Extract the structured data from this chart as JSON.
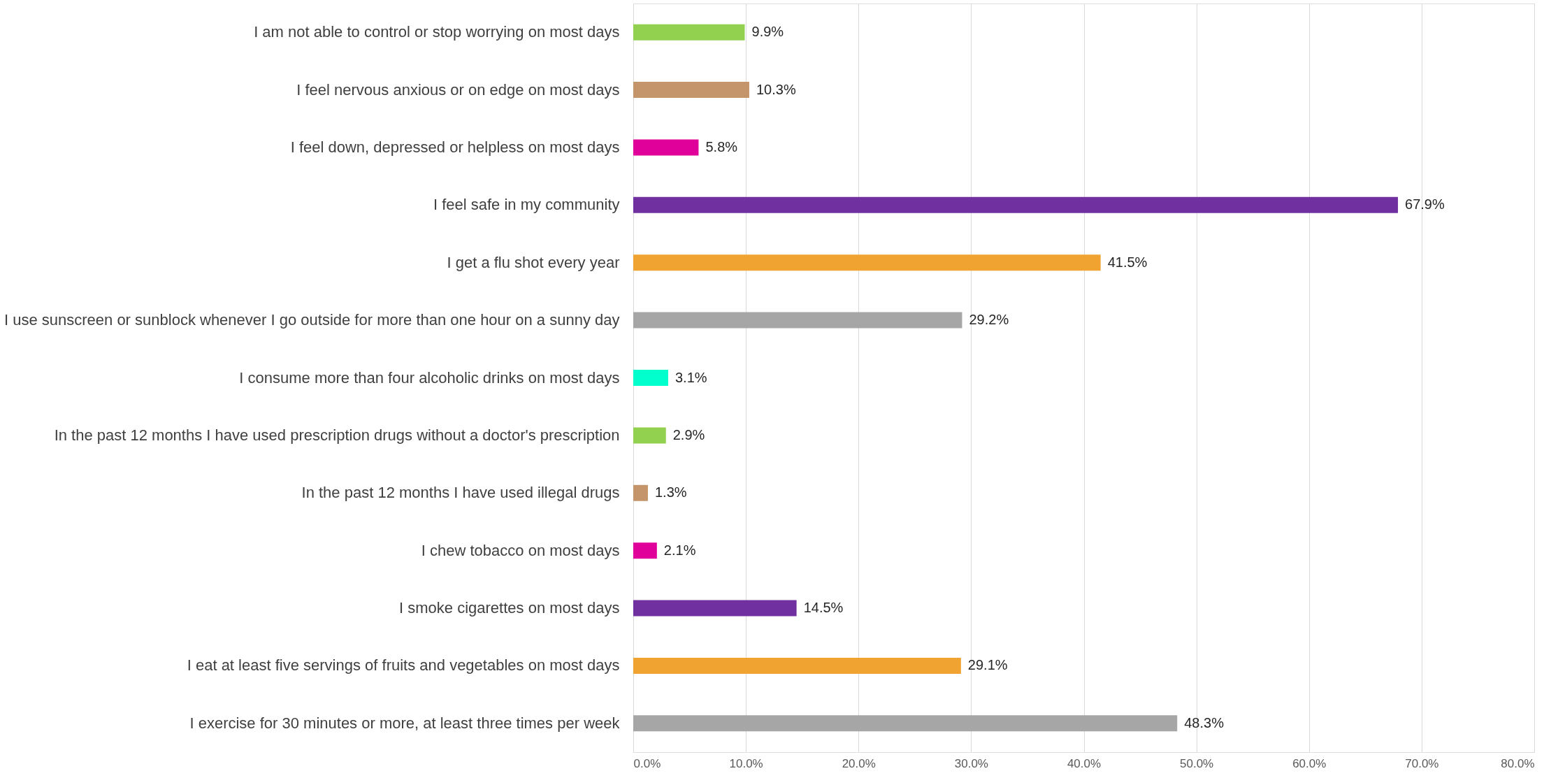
{
  "chart_data": {
    "type": "bar",
    "orientation": "horizontal",
    "categories": [
      "I am not able to control or stop worrying on most days",
      "I feel nervous anxious or on edge on most days",
      "I feel down, depressed or helpless on most days",
      "I feel safe in my community",
      "I get a flu shot every year",
      "I use sunscreen or sunblock whenever I go outside for more than one hour on a sunny day",
      "I consume more than four alcoholic drinks on most days",
      "In the past 12 months I have used prescription drugs without a doctor's prescription",
      "In the past 12 months I have used illegal drugs",
      "I chew tobacco on most days",
      "I smoke cigarettes on most days",
      "I eat at least five servings of fruits and vegetables on most days",
      "I exercise for 30 minutes or more, at least three times per week"
    ],
    "values": [
      9.9,
      10.3,
      5.8,
      67.9,
      41.5,
      29.2,
      3.1,
      2.9,
      1.3,
      2.1,
      14.5,
      29.1,
      48.3
    ],
    "value_labels": [
      "9.9%",
      "10.3%",
      "5.8%",
      "67.9%",
      "41.5%",
      "29.2%",
      "3.1%",
      "2.9%",
      "1.3%",
      "2.1%",
      "14.5%",
      "29.1%",
      "48.3%"
    ],
    "colors": [
      "#92d050",
      "#c4956a",
      "#e0009a",
      "#7030a0",
      "#f0a330",
      "#a6a6a6",
      "#00ffcc",
      "#92d050",
      "#c4956a",
      "#e0009a",
      "#7030a0",
      "#f0a330",
      "#a6a6a6"
    ],
    "xlim": [
      0,
      80
    ],
    "xticks": [
      {
        "value": 0,
        "label": "0.0%"
      },
      {
        "value": 10,
        "label": "10.0%"
      },
      {
        "value": 20,
        "label": "20.0%"
      },
      {
        "value": 30,
        "label": "30.0%"
      },
      {
        "value": 40,
        "label": "40.0%"
      },
      {
        "value": 50,
        "label": "50.0%"
      },
      {
        "value": 60,
        "label": "60.0%"
      },
      {
        "value": 70,
        "label": "70.0%"
      },
      {
        "value": 80,
        "label": "80.0%"
      }
    ],
    "grid": "x"
  }
}
